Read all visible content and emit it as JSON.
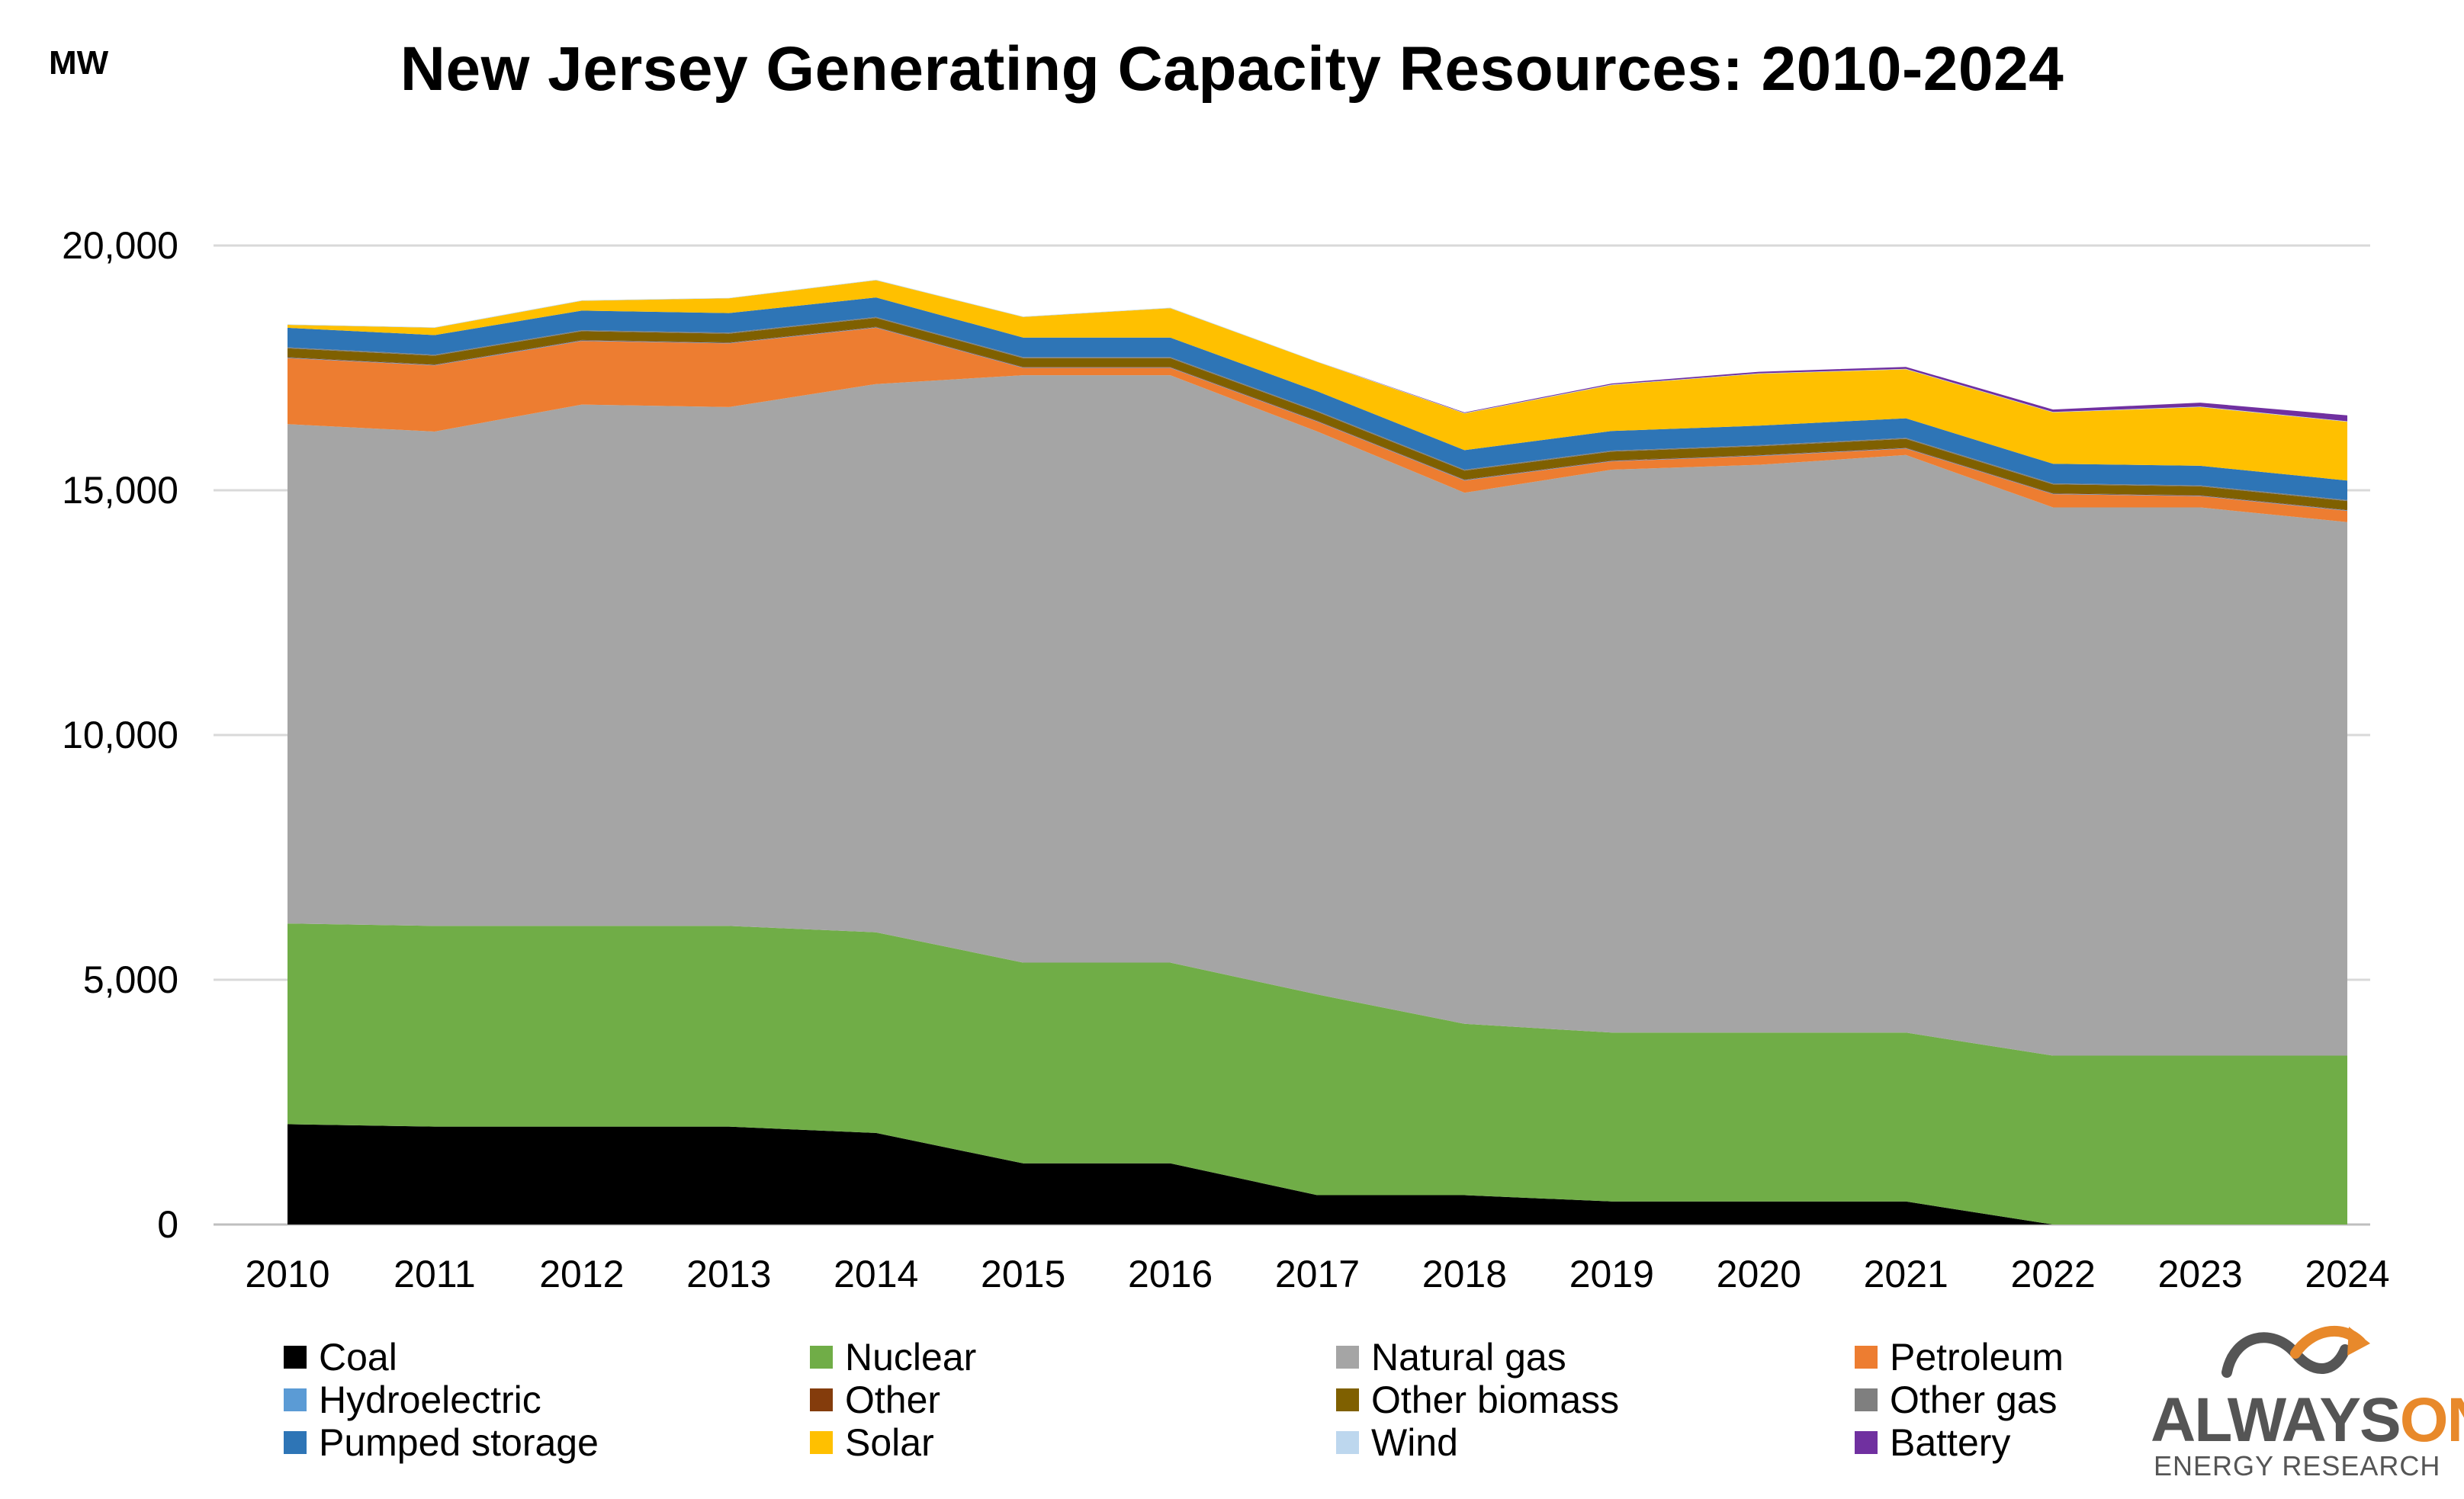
{
  "unit_label": "MW",
  "title": "New Jersey Generating Capacity Resources: 2010-2024",
  "logo": {
    "word_a": "ALWAYS",
    "word_b": "ON",
    "subtitle": "ENERGY RESEARCH"
  },
  "chart_data": {
    "type": "area",
    "stacked": true,
    "title": "New Jersey Generating Capacity Resources: 2010-2024",
    "ylabel": "MW",
    "ylim": [
      0,
      20000
    ],
    "yticks": [
      0,
      5000,
      10000,
      15000,
      20000
    ],
    "ytick_labels": [
      "0",
      "5,000",
      "10,000",
      "15,000",
      "20,000"
    ],
    "grid": true,
    "legend_position": "bottom",
    "x": [
      "2010",
      "2011",
      "2012",
      "2013",
      "2014",
      "2015",
      "2016",
      "2017",
      "2018",
      "2019",
      "2020",
      "2021",
      "2022",
      "2023",
      "2024"
    ],
    "series": [
      {
        "name": "Coal",
        "color": "#000000",
        "values": [
          2050,
          2000,
          2000,
          2000,
          1870,
          1250,
          1250,
          600,
          600,
          470,
          470,
          470,
          0,
          0,
          0
        ]
      },
      {
        "name": "Nuclear",
        "color": "#70ad47",
        "values": [
          4100,
          4100,
          4100,
          4100,
          4100,
          4100,
          4100,
          4100,
          3500,
          3450,
          3450,
          3450,
          3450,
          3450,
          3450
        ]
      },
      {
        "name": "Natural gas",
        "color": "#a5a5a5",
        "values": [
          10200,
          10100,
          10650,
          10600,
          11200,
          12000,
          12000,
          11500,
          10850,
          11500,
          11600,
          11800,
          11200,
          11200,
          10900
        ]
      },
      {
        "name": "Petroleum",
        "color": "#ed7d31",
        "values": [
          1350,
          1350,
          1300,
          1300,
          1150,
          150,
          150,
          200,
          250,
          170,
          180,
          130,
          270,
          230,
          230
        ]
      },
      {
        "name": "Hydroelectric",
        "color": "#5b9bd5",
        "values": [
          10,
          10,
          10,
          10,
          10,
          10,
          10,
          10,
          10,
          10,
          10,
          10,
          10,
          10,
          10
        ]
      },
      {
        "name": "Other",
        "color": "#843c0c",
        "values": [
          10,
          10,
          10,
          10,
          10,
          10,
          10,
          10,
          10,
          10,
          10,
          10,
          10,
          10,
          10
        ]
      },
      {
        "name": "Other biomass",
        "color": "#7f6000",
        "values": [
          180,
          180,
          180,
          180,
          180,
          180,
          180,
          180,
          180,
          180,
          180,
          180,
          180,
          180,
          180
        ]
      },
      {
        "name": "Other gas",
        "color": "#7f7f7f",
        "values": [
          20,
          20,
          20,
          20,
          20,
          20,
          20,
          20,
          20,
          20,
          20,
          20,
          20,
          20,
          20
        ]
      },
      {
        "name": "Pumped storage",
        "color": "#2e75b6",
        "values": [
          400,
          400,
          400,
          400,
          400,
          400,
          400,
          400,
          400,
          400,
          400,
          400,
          400,
          400,
          400
        ]
      },
      {
        "name": "Solar",
        "color": "#ffc000",
        "values": [
          60,
          150,
          200,
          300,
          350,
          420,
          600,
          600,
          750,
          940,
          1060,
          1000,
          1050,
          1200,
          1200
        ]
      },
      {
        "name": "Wind",
        "color": "#bdd7ee",
        "values": [
          10,
          10,
          10,
          10,
          10,
          10,
          10,
          10,
          10,
          10,
          10,
          10,
          10,
          10,
          10
        ]
      },
      {
        "name": "Battery",
        "color": "#7030a0",
        "values": [
          0,
          0,
          0,
          0,
          0,
          0,
          0,
          0,
          10,
          20,
          30,
          40,
          50,
          80,
          120
        ]
      }
    ]
  }
}
